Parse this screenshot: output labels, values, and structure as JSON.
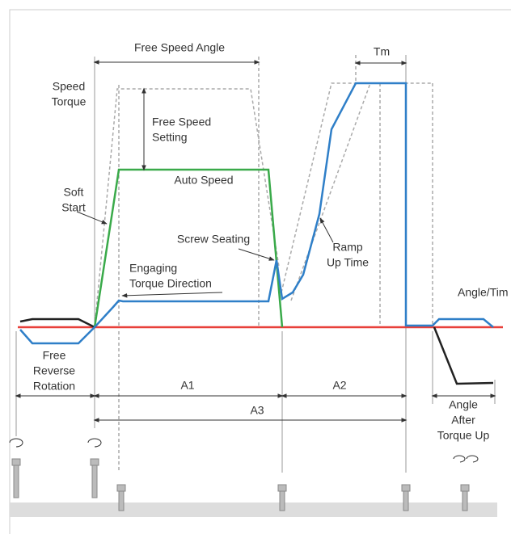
{
  "labels": {
    "free_speed_angle": "Free Speed Angle",
    "tm": "Tm",
    "speed_torque": [
      "Speed",
      "Torque"
    ],
    "free_speed_setting": [
      "Free Speed",
      "Setting"
    ],
    "auto_speed": "Auto Speed",
    "soft_start": [
      "Soft",
      "Start"
    ],
    "screw_seating": "Screw Seating",
    "engaging_torque_direction": [
      "Engaging",
      "Torque Direction"
    ],
    "ramp_up_time": [
      "Ramp",
      "Up Time"
    ],
    "angle_time": "Angle/Tim",
    "free_reverse_rotation": [
      "Free",
      "Reverse",
      "Rotation"
    ],
    "a1": "A1",
    "a2": "A2",
    "a3": "A3",
    "angle_after_torque_up": [
      "Angle",
      "After",
      "Torque Up"
    ]
  }
}
